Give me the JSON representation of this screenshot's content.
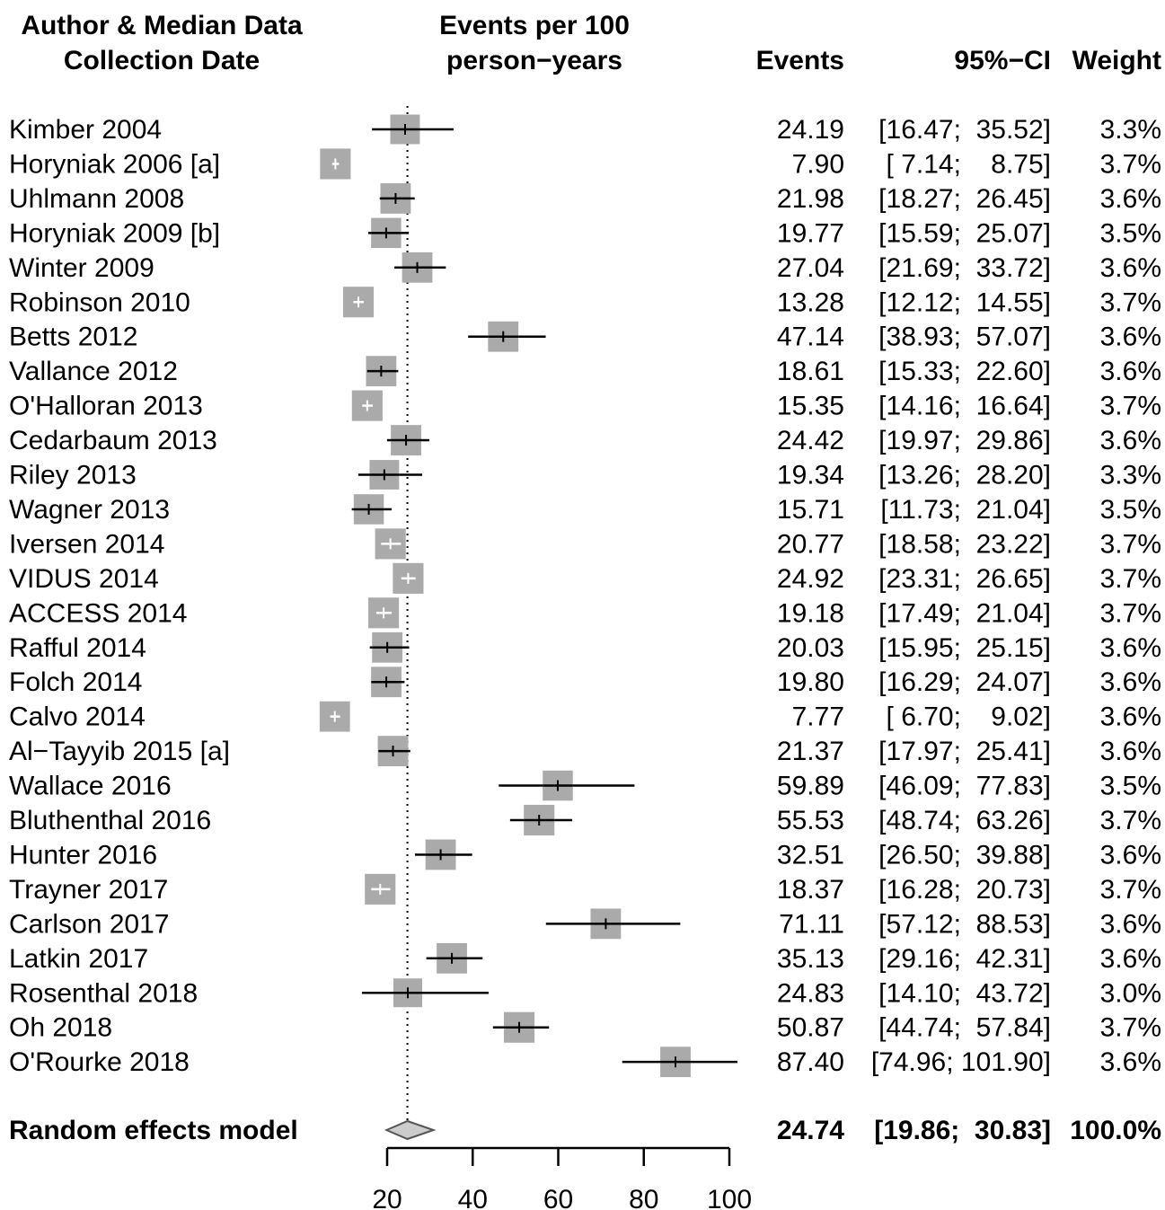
{
  "chart_data": {
    "type": "forest",
    "headers": {
      "study_line1": "Author & Median Data",
      "study_line2": "Collection Date",
      "plot_line1": "Events per 100",
      "plot_line2": "person−years",
      "events": "Events",
      "ci": "95%−CI",
      "weight": "Weight"
    },
    "xlim": [
      20,
      100
    ],
    "x_ticks": [
      20,
      40,
      60,
      80,
      100
    ],
    "x_tick_labels": [
      "20",
      "40",
      "60",
      "80",
      "100"
    ],
    "reference_line": 24.74,
    "rows": [
      {
        "study": "Kimber 2004",
        "est": 24.19,
        "lo": 16.47,
        "hi": 35.52,
        "events": "24.19",
        "ci": "[16.47;  35.52]",
        "weight": "3.3%",
        "w": 3.3
      },
      {
        "study": "Horyniak 2006 [a]",
        "est": 7.9,
        "lo": 7.14,
        "hi": 8.75,
        "events": "7.90",
        "ci": "[ 7.14;    8.75]",
        "weight": "3.7%",
        "w": 3.7
      },
      {
        "study": "Uhlmann 2008",
        "est": 21.98,
        "lo": 18.27,
        "hi": 26.45,
        "events": "21.98",
        "ci": "[18.27;  26.45]",
        "weight": "3.6%",
        "w": 3.6
      },
      {
        "study": "Horyniak 2009 [b]",
        "est": 19.77,
        "lo": 15.59,
        "hi": 25.07,
        "events": "19.77",
        "ci": "[15.59;  25.07]",
        "weight": "3.5%",
        "w": 3.5
      },
      {
        "study": "Winter 2009",
        "est": 27.04,
        "lo": 21.69,
        "hi": 33.72,
        "events": "27.04",
        "ci": "[21.69;  33.72]",
        "weight": "3.6%",
        "w": 3.6
      },
      {
        "study": "Robinson 2010",
        "est": 13.28,
        "lo": 12.12,
        "hi": 14.55,
        "events": "13.28",
        "ci": "[12.12;  14.55]",
        "weight": "3.7%",
        "w": 3.7
      },
      {
        "study": "Betts 2012",
        "est": 47.14,
        "lo": 38.93,
        "hi": 57.07,
        "events": "47.14",
        "ci": "[38.93;  57.07]",
        "weight": "3.6%",
        "w": 3.6
      },
      {
        "study": "Vallance 2012",
        "est": 18.61,
        "lo": 15.33,
        "hi": 22.6,
        "events": "18.61",
        "ci": "[15.33;  22.60]",
        "weight": "3.6%",
        "w": 3.6
      },
      {
        "study": "O'Halloran 2013",
        "est": 15.35,
        "lo": 14.16,
        "hi": 16.64,
        "events": "15.35",
        "ci": "[14.16;  16.64]",
        "weight": "3.7%",
        "w": 3.7
      },
      {
        "study": "Cedarbaum 2013",
        "est": 24.42,
        "lo": 19.97,
        "hi": 29.86,
        "events": "24.42",
        "ci": "[19.97;  29.86]",
        "weight": "3.6%",
        "w": 3.6
      },
      {
        "study": "Riley 2013",
        "est": 19.34,
        "lo": 13.26,
        "hi": 28.2,
        "events": "19.34",
        "ci": "[13.26;  28.20]",
        "weight": "3.3%",
        "w": 3.3
      },
      {
        "study": "Wagner 2013",
        "est": 15.71,
        "lo": 11.73,
        "hi": 21.04,
        "events": "15.71",
        "ci": "[11.73;  21.04]",
        "weight": "3.5%",
        "w": 3.5
      },
      {
        "study": "Iversen 2014",
        "est": 20.77,
        "lo": 18.58,
        "hi": 23.22,
        "events": "20.77",
        "ci": "[18.58;  23.22]",
        "weight": "3.7%",
        "w": 3.7
      },
      {
        "study": "VIDUS 2014",
        "est": 24.92,
        "lo": 23.31,
        "hi": 26.65,
        "events": "24.92",
        "ci": "[23.31;  26.65]",
        "weight": "3.7%",
        "w": 3.7
      },
      {
        "study": "ACCESS 2014",
        "est": 19.18,
        "lo": 17.49,
        "hi": 21.04,
        "events": "19.18",
        "ci": "[17.49;  21.04]",
        "weight": "3.7%",
        "w": 3.7
      },
      {
        "study": "Rafful 2014",
        "est": 20.03,
        "lo": 15.95,
        "hi": 25.15,
        "events": "20.03",
        "ci": "[15.95;  25.15]",
        "weight": "3.6%",
        "w": 3.6
      },
      {
        "study": "Folch 2014",
        "est": 19.8,
        "lo": 16.29,
        "hi": 24.07,
        "events": "19.80",
        "ci": "[16.29;  24.07]",
        "weight": "3.6%",
        "w": 3.6
      },
      {
        "study": "Calvo 2014",
        "est": 7.77,
        "lo": 6.7,
        "hi": 9.02,
        "events": "7.77",
        "ci": "[ 6.70;    9.02]",
        "weight": "3.6%",
        "w": 3.6
      },
      {
        "study": "Al−Tayyib 2015 [a]",
        "est": 21.37,
        "lo": 17.97,
        "hi": 25.41,
        "events": "21.37",
        "ci": "[17.97;  25.41]",
        "weight": "3.6%",
        "w": 3.6
      },
      {
        "study": "Wallace 2016",
        "est": 59.89,
        "lo": 46.09,
        "hi": 77.83,
        "events": "59.89",
        "ci": "[46.09;  77.83]",
        "weight": "3.5%",
        "w": 3.5
      },
      {
        "study": "Bluthenthal 2016",
        "est": 55.53,
        "lo": 48.74,
        "hi": 63.26,
        "events": "55.53",
        "ci": "[48.74;  63.26]",
        "weight": "3.7%",
        "w": 3.7
      },
      {
        "study": "Hunter 2016",
        "est": 32.51,
        "lo": 26.5,
        "hi": 39.88,
        "events": "32.51",
        "ci": "[26.50;  39.88]",
        "weight": "3.6%",
        "w": 3.6
      },
      {
        "study": "Trayner 2017",
        "est": 18.37,
        "lo": 16.28,
        "hi": 20.73,
        "events": "18.37",
        "ci": "[16.28;  20.73]",
        "weight": "3.7%",
        "w": 3.7
      },
      {
        "study": "Carlson 2017",
        "est": 71.11,
        "lo": 57.12,
        "hi": 88.53,
        "events": "71.11",
        "ci": "[57.12;  88.53]",
        "weight": "3.6%",
        "w": 3.6
      },
      {
        "study": "Latkin 2017",
        "est": 35.13,
        "lo": 29.16,
        "hi": 42.31,
        "events": "35.13",
        "ci": "[29.16;  42.31]",
        "weight": "3.6%",
        "w": 3.6
      },
      {
        "study": "Rosenthal 2018",
        "est": 24.83,
        "lo": 14.1,
        "hi": 43.72,
        "events": "24.83",
        "ci": "[14.10;  43.72]",
        "weight": "3.0%",
        "w": 3.0
      },
      {
        "study": "Oh 2018",
        "est": 50.87,
        "lo": 44.74,
        "hi": 57.84,
        "events": "50.87",
        "ci": "[44.74;  57.84]",
        "weight": "3.7%",
        "w": 3.7
      },
      {
        "study": "O'Rourke 2018",
        "est": 87.4,
        "lo": 74.96,
        "hi": 101.9,
        "events": "87.40",
        "ci": "[74.96; 101.90]",
        "weight": "3.6%",
        "w": 3.6
      }
    ],
    "summary": {
      "label": "Random effects model",
      "est": 24.74,
      "lo": 19.86,
      "hi": 30.83,
      "events": "24.74",
      "ci": "[19.86;  30.83]",
      "weight": "100.0%"
    },
    "colors": {
      "box": "#aaaaaa",
      "diamond": "#cccccc",
      "line": "#000000",
      "inner_line": "#ffffff"
    }
  }
}
